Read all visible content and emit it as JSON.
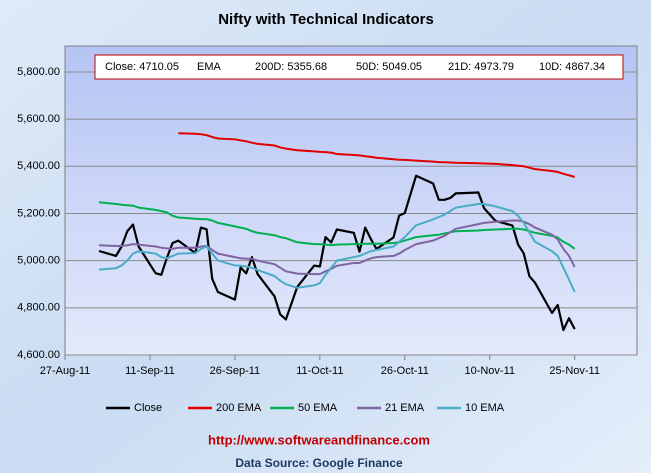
{
  "chart_data": {
    "type": "line",
    "title": "Nifty with Technical Indicators",
    "annotations": [
      "Close: 4710.05",
      "EMA",
      "200D: 5355.68",
      "50D: 5049.05",
      "21D: 4973.79",
      "10D: 4867.34",
      "http://www.softwareandfinance.com",
      "Data Source: Google Finance"
    ],
    "x": [
      "2011-09-02",
      "2011-09-05",
      "2011-09-06",
      "2011-09-07",
      "2011-09-08",
      "2011-09-09",
      "2011-09-12",
      "2011-09-13",
      "2011-09-14",
      "2011-09-15",
      "2011-09-16",
      "2011-09-19",
      "2011-09-20",
      "2011-09-21",
      "2011-09-22",
      "2011-09-23",
      "2011-09-26",
      "2011-09-27",
      "2011-09-28",
      "2011-09-29",
      "2011-09-30",
      "2011-10-03",
      "2011-10-04",
      "2011-10-05",
      "2011-10-07",
      "2011-10-10",
      "2011-10-11",
      "2011-10-12",
      "2011-10-13",
      "2011-10-14",
      "2011-10-17",
      "2011-10-18",
      "2011-10-19",
      "2011-10-20",
      "2011-10-21",
      "2011-10-24",
      "2011-10-25",
      "2011-10-26",
      "2011-10-28",
      "2011-10-31",
      "2011-11-01",
      "2011-11-02",
      "2011-11-03",
      "2011-11-04",
      "2011-11-08",
      "2011-11-09",
      "2011-11-11",
      "2011-11-14",
      "2011-11-15",
      "2011-11-16",
      "2011-11-17",
      "2011-11-18",
      "2011-11-21",
      "2011-11-22",
      "2011-11-23",
      "2011-11-24",
      "2011-11-25"
    ],
    "series": [
      {
        "name": "Close",
        "color": "#000000",
        "values": [
          5041,
          5020,
          5060,
          5125,
          5153,
          5060,
          4947,
          4940,
          5012,
          5075,
          5085,
          5032,
          5140,
          5133,
          4923,
          4867,
          4835,
          4971,
          4946,
          5015,
          4943,
          4849,
          4772,
          4751,
          4888,
          4979,
          4975,
          5100,
          5077,
          5132,
          5118,
          5038,
          5140,
          5092,
          5050,
          5098,
          5191,
          5202,
          5360,
          5327,
          5258,
          5258,
          5265,
          5285,
          5289,
          5222,
          5169,
          5149,
          5068,
          5031,
          4934,
          4906,
          4778,
          4812,
          4706,
          4756,
          4710
        ]
      },
      {
        "name": "200 EMA",
        "color": "#e00000",
        "values": [
          null,
          null,
          null,
          null,
          null,
          null,
          null,
          null,
          null,
          null,
          5540,
          5538,
          5536,
          5532,
          5524,
          5518,
          5514,
          5510,
          5506,
          5500,
          5495,
          5488,
          5480,
          5475,
          5468,
          5463,
          5461,
          5460,
          5458,
          5452,
          5448,
          5446,
          5443,
          5440,
          5436,
          5430,
          5428,
          5427,
          5424,
          5420,
          5418,
          5417,
          5416,
          5415,
          5413,
          5412,
          5410,
          5405,
          5402,
          5400,
          5394,
          5388,
          5380,
          5376,
          5368,
          5362,
          5355
        ]
      },
      {
        "name": "50 EMA",
        "color": "#00b050",
        "values": [
          5248,
          5240,
          5237,
          5235,
          5233,
          5225,
          5215,
          5210,
          5205,
          5190,
          5183,
          5178,
          5176,
          5176,
          5170,
          5160,
          5145,
          5140,
          5135,
          5125,
          5118,
          5108,
          5100,
          5095,
          5078,
          5070,
          5070,
          5068,
          5066,
          5068,
          5070,
          5070,
          5072,
          5072,
          5072,
          5075,
          5078,
          5085,
          5100,
          5108,
          5110,
          5115,
          5120,
          5125,
          5128,
          5130,
          5132,
          5135,
          5135,
          5132,
          5125,
          5118,
          5105,
          5098,
          5080,
          5068,
          5050
        ]
      },
      {
        "name": "21 EMA",
        "color": "#8064a2",
        "values": [
          5065,
          5062,
          5062,
          5065,
          5070,
          5068,
          5060,
          5055,
          5052,
          5050,
          5055,
          5055,
          5060,
          5062,
          5045,
          5030,
          5015,
          5010,
          5008,
          5008,
          5000,
          4985,
          4970,
          4955,
          4945,
          4943,
          4943,
          4955,
          4965,
          4978,
          4990,
          4990,
          5000,
          5010,
          5015,
          5020,
          5030,
          5045,
          5070,
          5085,
          5095,
          5105,
          5120,
          5135,
          5155,
          5160,
          5165,
          5170,
          5170,
          5165,
          5155,
          5140,
          5110,
          5090,
          5050,
          5020,
          4973
        ]
      },
      {
        "name": "10 EMA",
        "color": "#4bacc6",
        "values": [
          4962,
          4968,
          4980,
          5000,
          5030,
          5040,
          5030,
          5015,
          5010,
          5020,
          5030,
          5032,
          5050,
          5060,
          5030,
          5000,
          4980,
          4978,
          4975,
          4970,
          4960,
          4935,
          4915,
          4900,
          4885,
          4895,
          4905,
          4940,
          4970,
          5000,
          5015,
          5020,
          5030,
          5040,
          5045,
          5060,
          5080,
          5100,
          5150,
          5175,
          5185,
          5195,
          5210,
          5225,
          5240,
          5240,
          5230,
          5210,
          5190,
          5160,
          5120,
          5080,
          5040,
          5020,
          4970,
          4920,
          4867
        ]
      }
    ],
    "xlim": [
      "2011-08-27",
      "2011-12-06"
    ],
    "xticks": [
      {
        "value": "2011-08-27",
        "label": "27-Aug-11"
      },
      {
        "value": "2011-09-11",
        "label": "11-Sep-11"
      },
      {
        "value": "2011-09-26",
        "label": "26-Sep-11"
      },
      {
        "value": "2011-10-11",
        "label": "11-Oct-11"
      },
      {
        "value": "2011-10-26",
        "label": "26-Oct-11"
      },
      {
        "value": "2011-11-10",
        "label": "10-Nov-11"
      },
      {
        "value": "2011-11-25",
        "label": "25-Nov-11"
      }
    ],
    "ylim": [
      4600,
      5910
    ],
    "yticks": [
      {
        "value": 4600,
        "label": "4,600.00"
      },
      {
        "value": 4800,
        "label": "4,800.00"
      },
      {
        "value": 5000,
        "label": "5,000.00"
      },
      {
        "value": 5200,
        "label": "5,200.00"
      },
      {
        "value": 5400,
        "label": "5,400.00"
      },
      {
        "value": 5600,
        "label": "5,600.00"
      },
      {
        "value": 5800,
        "label": "5,800.00"
      }
    ],
    "grid": true
  }
}
